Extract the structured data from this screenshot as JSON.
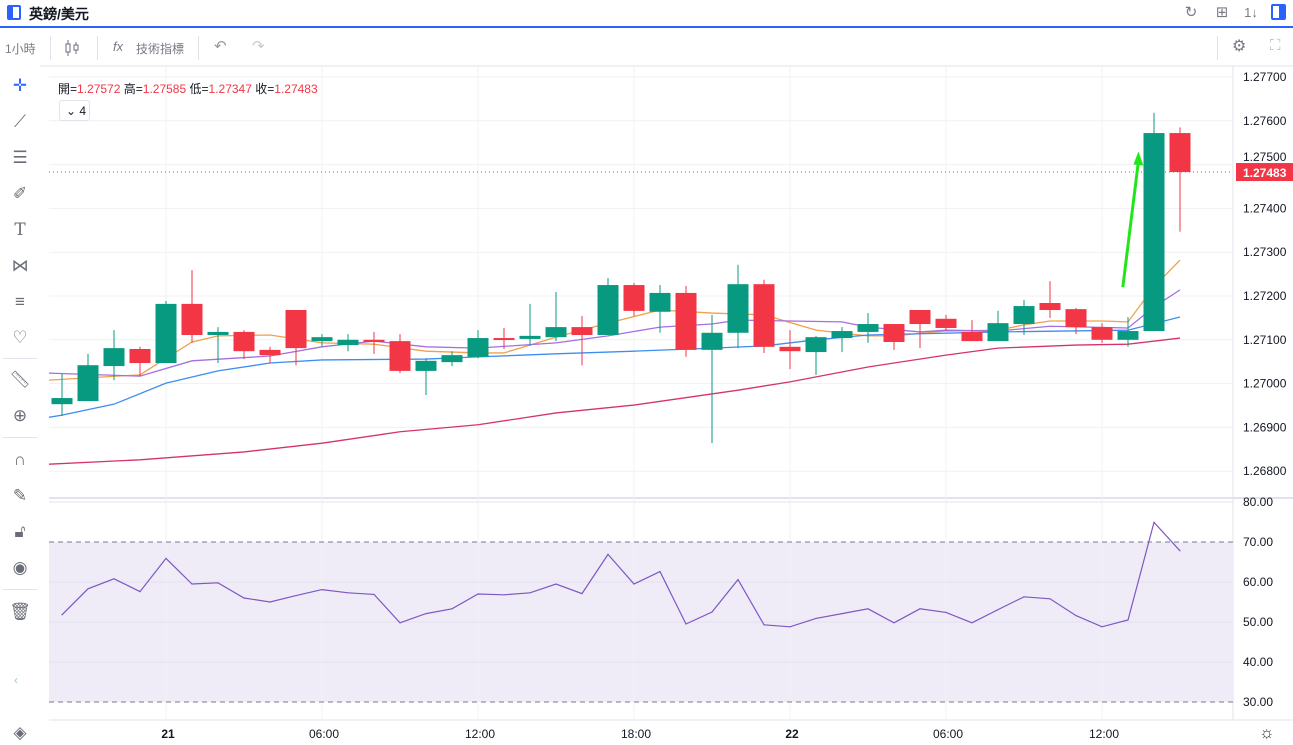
{
  "header": {
    "title": "英鎊/美元",
    "refresh_icon": "↻",
    "layout_icon": "⊞",
    "sort_icon": "1↓"
  },
  "toolbar": {
    "interval": "1小時",
    "indicators_label": "技術指標",
    "fx_icon": "fx",
    "undo_icon": "↶",
    "redo_icon": "↷",
    "settings_icon": "⚙",
    "fullscreen_icon": "⛶"
  },
  "legend": {
    "open_label": "開=",
    "open": "1.27572",
    "high_label": "高=",
    "high": "1.27585",
    "low_label": "低=",
    "low": "1.27347",
    "close_label": "收=",
    "close": "1.27483",
    "indicator_count": "4",
    "collapse_icon": "⌄"
  },
  "left_tools": [
    "crosshair",
    "trend-line",
    "horizontal-lines",
    "brush",
    "text",
    "pattern",
    "fib-levels",
    "favorite",
    "ruler",
    "zoom-in",
    "magnet",
    "lock-drawing",
    "lock",
    "eye",
    "trash",
    "layers"
  ],
  "colors": {
    "up": "#089981",
    "down": "#f23645",
    "ma_orange": "#f0a04b",
    "ma_purple": "#a66ee0",
    "ma_blue": "#3d8ef0",
    "ma_pink": "#d6336c",
    "rsi": "#7e57c2",
    "arrow": "#22e51a"
  },
  "chart_data": {
    "type": "candlestick",
    "symbol": "英鎊/美元",
    "interval": "1小時",
    "ylim": [
      1.2679,
      1.2772
    ],
    "y_ticks": [
      "1.27700",
      "1.27600",
      "1.27500",
      "1.27400",
      "1.27300",
      "1.27200",
      "1.27100",
      "1.27000",
      "1.26900",
      "1.26800"
    ],
    "y_tick_values": [
      1.277,
      1.276,
      1.275,
      1.274,
      1.273,
      1.272,
      1.271,
      1.27,
      1.269,
      1.268
    ],
    "x_ticks": [
      {
        "i": 4,
        "label": "21",
        "bold": true
      },
      {
        "i": 10,
        "label": "06:00"
      },
      {
        "i": 16,
        "label": "12:00"
      },
      {
        "i": 22,
        "label": "18:00"
      },
      {
        "i": 28,
        "label": "22",
        "bold": true
      },
      {
        "i": 34,
        "label": "06:00"
      },
      {
        "i": 40,
        "label": "12:00"
      }
    ],
    "last_price": 1.27483,
    "last_price_label": "1.27483",
    "ohlc": [
      [
        1.26953,
        1.27022,
        1.26926,
        1.26967
      ],
      [
        1.2696,
        1.27068,
        1.2696,
        1.27042
      ],
      [
        1.2704,
        1.27122,
        1.27008,
        1.27081
      ],
      [
        1.27079,
        1.27084,
        1.27017,
        1.27047
      ],
      [
        1.27047,
        1.27189,
        1.27047,
        1.27182
      ],
      [
        1.27182,
        1.27259,
        1.27093,
        1.27111
      ],
      [
        1.27111,
        1.27129,
        1.27047,
        1.27118
      ],
      [
        1.27118,
        1.27122,
        1.27056,
        1.27074
      ],
      [
        1.27077,
        1.27084,
        1.27047,
        1.27065
      ],
      [
        1.27168,
        1.27168,
        1.27042,
        1.27081
      ],
      [
        1.27097,
        1.27113,
        1.27084,
        1.27106
      ],
      [
        1.27088,
        1.27113,
        1.27074,
        1.271
      ],
      [
        1.271,
        1.27118,
        1.27068,
        1.27095
      ],
      [
        1.27097,
        1.27113,
        1.27024,
        1.27029
      ],
      [
        1.27029,
        1.27058,
        1.26974,
        1.27052
      ],
      [
        1.27049,
        1.27074,
        1.2704,
        1.27065
      ],
      [
        1.27061,
        1.27122,
        1.27058,
        1.27104
      ],
      [
        1.27104,
        1.27127,
        1.27079,
        1.271
      ],
      [
        1.27102,
        1.27182,
        1.27086,
        1.27109
      ],
      [
        1.27106,
        1.27209,
        1.27097,
        1.27129
      ],
      [
        1.27129,
        1.27154,
        1.27042,
        1.27111
      ],
      [
        1.27111,
        1.27241,
        1.27111,
        1.27225
      ],
      [
        1.27225,
        1.2723,
        1.27154,
        1.27166
      ],
      [
        1.27164,
        1.27225,
        1.27116,
        1.27207
      ],
      [
        1.27207,
        1.27223,
        1.27061,
        1.27077
      ],
      [
        1.27077,
        1.27157,
        1.26864,
        1.27116
      ],
      [
        1.27116,
        1.27271,
        1.27081,
        1.27227
      ],
      [
        1.27227,
        1.27237,
        1.2707,
        1.27084
      ],
      [
        1.27084,
        1.27122,
        1.27033,
        1.27074
      ],
      [
        1.27072,
        1.27109,
        1.2702,
        1.27106
      ],
      [
        1.27104,
        1.27129,
        1.27072,
        1.2712
      ],
      [
        1.27118,
        1.27161,
        1.27093,
        1.27136
      ],
      [
        1.27136,
        1.27136,
        1.27077,
        1.27095
      ],
      [
        1.27168,
        1.27168,
        1.27081,
        1.27136
      ],
      [
        1.27148,
        1.27157,
        1.2712,
        1.27127
      ],
      [
        1.27118,
        1.27145,
        1.27097,
        1.27097
      ],
      [
        1.27097,
        1.27166,
        1.27097,
        1.27138
      ],
      [
        1.27136,
        1.27191,
        1.27111,
        1.27177
      ],
      [
        1.27184,
        1.27234,
        1.2715,
        1.27168
      ],
      [
        1.2717,
        1.27173,
        1.27113,
        1.27129
      ],
      [
        1.27129,
        1.27138,
        1.27093,
        1.271
      ],
      [
        1.271,
        1.27152,
        1.27084,
        1.2712
      ],
      [
        1.2712,
        1.27618,
        1.2712,
        1.27572
      ],
      [
        1.27572,
        1.27585,
        1.27347,
        1.27483
      ]
    ],
    "moving_averages": [
      {
        "name": "ma-orange",
        "color": "#f0a04b",
        "points": [
          [
            -0.5,
            1.27008
          ],
          [
            3,
            1.2702
          ],
          [
            5,
            1.27095
          ],
          [
            6,
            1.27109
          ],
          [
            8,
            1.27111
          ],
          [
            10,
            1.27093
          ],
          [
            12,
            1.2709
          ],
          [
            14,
            1.27074
          ],
          [
            16,
            1.2707
          ],
          [
            17,
            1.2707
          ],
          [
            19,
            1.27106
          ],
          [
            21,
            1.27138
          ],
          [
            23,
            1.27168
          ],
          [
            25,
            1.27161
          ],
          [
            27,
            1.27157
          ],
          [
            29,
            1.27122
          ],
          [
            31,
            1.27109
          ],
          [
            32,
            1.27109
          ],
          [
            34,
            1.2712
          ],
          [
            36,
            1.27122
          ],
          [
            37,
            1.27134
          ],
          [
            38,
            1.27143
          ],
          [
            40,
            1.27143
          ],
          [
            41,
            1.27141
          ],
          [
            42,
            1.27221
          ],
          [
            43,
            1.27282
          ]
        ]
      },
      {
        "name": "ma-purple",
        "color": "#a66ee0",
        "points": [
          [
            -0.5,
            1.27024
          ],
          [
            3,
            1.27017
          ],
          [
            5,
            1.27052
          ],
          [
            8,
            1.27063
          ],
          [
            10,
            1.27084
          ],
          [
            12,
            1.27097
          ],
          [
            14,
            1.27084
          ],
          [
            16,
            1.27081
          ],
          [
            19,
            1.27093
          ],
          [
            21,
            1.27109
          ],
          [
            23,
            1.27129
          ],
          [
            25,
            1.27136
          ],
          [
            26,
            1.27145
          ],
          [
            28,
            1.27143
          ],
          [
            30,
            1.27141
          ],
          [
            31,
            1.27129
          ],
          [
            33,
            1.27118
          ],
          [
            34,
            1.27122
          ],
          [
            36,
            1.2712
          ],
          [
            38,
            1.27131
          ],
          [
            41,
            1.27127
          ],
          [
            42,
            1.27175
          ],
          [
            43,
            1.27214
          ]
        ]
      },
      {
        "name": "ma-blue",
        "color": "#3d8ef0",
        "points": [
          [
            -0.5,
            1.26923
          ],
          [
            0,
            1.26928
          ],
          [
            2,
            1.26953
          ],
          [
            4,
            1.27001
          ],
          [
            6,
            1.27029
          ],
          [
            8,
            1.27047
          ],
          [
            10,
            1.27054
          ],
          [
            14,
            1.27056
          ],
          [
            16,
            1.27061
          ],
          [
            19,
            1.27068
          ],
          [
            22,
            1.27074
          ],
          [
            25,
            1.27081
          ],
          [
            27,
            1.27086
          ],
          [
            29,
            1.271
          ],
          [
            31,
            1.27111
          ],
          [
            36,
            1.27118
          ],
          [
            41,
            1.27122
          ],
          [
            43,
            1.27152
          ]
        ]
      },
      {
        "name": "ma-pink",
        "color": "#d6336c",
        "points": [
          [
            -0.5,
            1.26816
          ],
          [
            3,
            1.26826
          ],
          [
            7,
            1.26844
          ],
          [
            10,
            1.26864
          ],
          [
            13,
            1.2689
          ],
          [
            16,
            1.26906
          ],
          [
            19,
            1.26933
          ],
          [
            22,
            1.26951
          ],
          [
            26,
            1.26985
          ],
          [
            28,
            1.27004
          ],
          [
            31,
            1.27038
          ],
          [
            34,
            1.27065
          ],
          [
            36,
            1.27081
          ],
          [
            39,
            1.27088
          ],
          [
            41,
            1.2709
          ],
          [
            43,
            1.27104
          ]
        ]
      }
    ],
    "annotation_arrow": {
      "from": [
        40.8,
        1.2722
      ],
      "to": [
        41.4,
        1.2753
      ],
      "color": "#22e51a"
    },
    "rsi": {
      "ylim": [
        30,
        80
      ],
      "upper_band": 70,
      "lower_band": 30,
      "y_ticks": [
        "80.00",
        "70.00",
        "60.00",
        "50.00",
        "40.00",
        "30.00"
      ],
      "y_tick_values": [
        80,
        70,
        60,
        50,
        40,
        30
      ],
      "values": [
        51.8,
        58.3,
        60.8,
        57.6,
        65.9,
        59.5,
        59.8,
        56.0,
        55.0,
        56.6,
        58.1,
        57.3,
        56.9,
        49.8,
        52.1,
        53.3,
        57.0,
        56.8,
        57.3,
        59.5,
        57.1,
        66.9,
        59.5,
        62.6,
        49.5,
        52.5,
        60.6,
        49.3,
        48.8,
        50.9,
        52.1,
        53.3,
        49.8,
        53.3,
        52.4,
        49.8,
        53.1,
        56.3,
        55.8,
        51.6,
        48.8,
        50.5,
        74.9,
        67.8
      ]
    }
  }
}
